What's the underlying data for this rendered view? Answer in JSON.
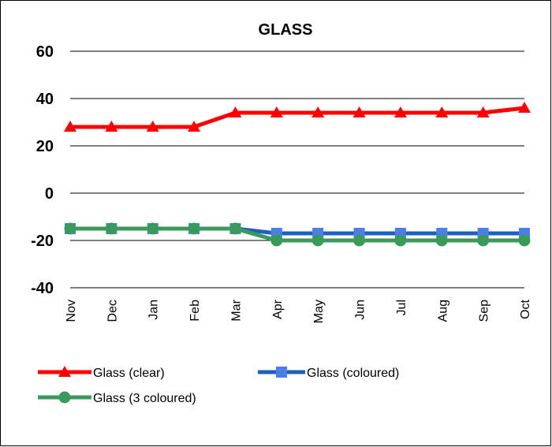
{
  "chart_data": {
    "type": "line",
    "title": "GLASS",
    "xlabel": "",
    "ylabel": "",
    "categories": [
      "Nov",
      "Dec",
      "Jan",
      "Feb",
      "Mar",
      "Apr",
      "May",
      "Jun",
      "Jul",
      "Aug",
      "Sep",
      "Oct"
    ],
    "ylim": [
      -40,
      60
    ],
    "yticks": [
      -40,
      -20,
      0,
      20,
      40,
      60
    ],
    "grid": true,
    "legend_position": "bottom",
    "series": [
      {
        "name": "Glass (clear)",
        "color": "#ff0000",
        "marker": "triangle",
        "values": [
          28,
          28,
          28,
          28,
          34,
          34,
          34,
          34,
          34,
          34,
          34,
          36
        ]
      },
      {
        "name": "Glass (coloured)",
        "color": "#1f5fbf",
        "marker_color": "#4a7fe6",
        "marker": "square",
        "values": [
          -15,
          -15,
          -15,
          -15,
          -15,
          -17,
          -17,
          -17,
          -17,
          -17,
          -17,
          -17
        ]
      },
      {
        "name": "Glass (3 coloured)",
        "color": "#3a9a5a",
        "marker": "circle",
        "values": [
          -15,
          -15,
          -15,
          -15,
          -15,
          -20,
          -20,
          -20,
          -20,
          -20,
          -20,
          -20
        ]
      }
    ]
  }
}
